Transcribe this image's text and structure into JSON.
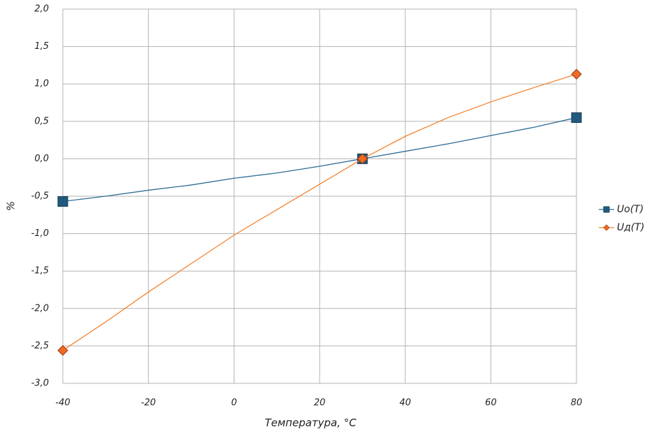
{
  "chart_data": {
    "type": "line",
    "x_label": "Температура, °C",
    "y_label": "%",
    "x": [
      -40,
      -30,
      -20,
      -10,
      0,
      10,
      20,
      30,
      40,
      50,
      60,
      70,
      80
    ],
    "series": [
      {
        "name": "Uo(T)",
        "color": "#2e6c94",
        "marker": "square",
        "marker_color": "#215a7e",
        "values": [
          -0.57,
          -0.5,
          -0.42,
          -0.35,
          -0.26,
          -0.19,
          -0.1,
          0.0,
          0.1,
          0.2,
          0.31,
          0.42,
          0.55
        ]
      },
      {
        "name": "Uд(T)",
        "color": "#f5822e",
        "marker": "diamond",
        "marker_color": "#ef6a24",
        "values": [
          -2.56,
          -2.18,
          -1.78,
          -1.4,
          -1.02,
          -0.68,
          -0.34,
          0.0,
          0.3,
          0.55,
          0.76,
          0.95,
          1.13
        ]
      }
    ],
    "marker_x": [
      -40,
      30,
      80
    ],
    "xlim": [
      -40,
      80
    ],
    "xticks": [
      -40,
      -20,
      0,
      20,
      40,
      60,
      80
    ],
    "ylim": [
      -3,
      2
    ],
    "yticks": [
      {
        "value": -3,
        "label": "-3,0"
      },
      {
        "value": -2.5,
        "label": "-2,5"
      },
      {
        "value": -2,
        "label": "-2,0"
      },
      {
        "value": -1.5,
        "label": "-1,5"
      },
      {
        "value": -1,
        "label": "-1,0"
      },
      {
        "value": -0.5,
        "label": "-0,5"
      },
      {
        "value": 0,
        "label": "0,0"
      },
      {
        "value": 0.5,
        "label": "0,5"
      },
      {
        "value": 1,
        "label": "1,0"
      },
      {
        "value": 1.5,
        "label": "1,5"
      },
      {
        "value": 2,
        "label": "2,0"
      }
    ],
    "grid": true,
    "legend": "right"
  }
}
